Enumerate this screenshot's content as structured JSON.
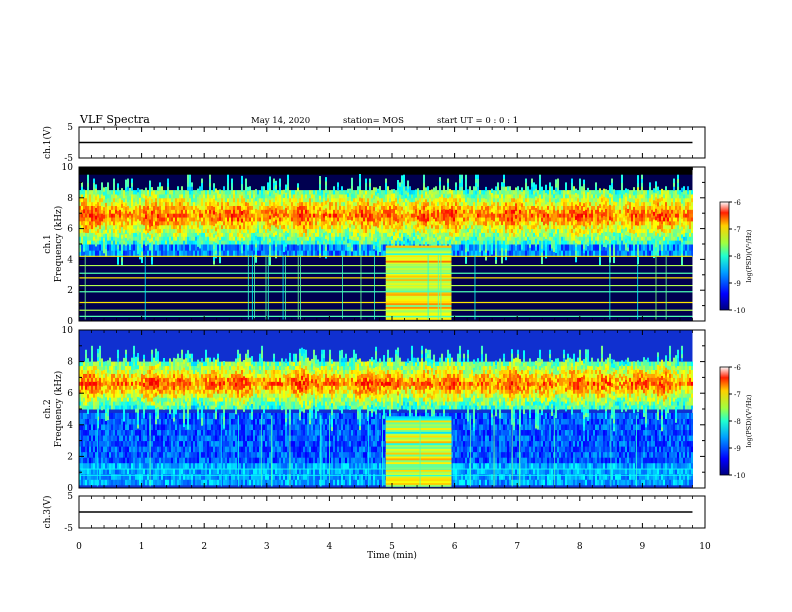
{
  "header": {
    "title": "VLF Spectra",
    "date": "May 14, 2020",
    "station": "station= MOS",
    "start_ut": "start  UT  =   0 : 0  : 1"
  },
  "chart_data": [
    {
      "type": "line",
      "panel": "ch1-voltage",
      "ylabel": "ch.1(V)",
      "y_ticks": [
        "5",
        "-5"
      ],
      "ylim": [
        -5,
        5
      ],
      "series": [
        {
          "values_const": 0
        }
      ]
    },
    {
      "type": "heatmap",
      "panel": "ch1-spectrogram",
      "ylabel_channel": "ch.1",
      "ylabel": "Frequency  (kHz)",
      "y_ticks": [
        "0",
        "2",
        "4",
        "6",
        "8",
        "10"
      ],
      "ylim": [
        0,
        10
      ],
      "xlim": [
        0,
        10
      ],
      "data_extent_min": 9.8,
      "colorbar": {
        "label": "log(PSD)(V²/Hz)",
        "ticks": [
          "-6",
          "-7",
          "-8",
          "-9",
          "-10"
        ],
        "range": [
          -10,
          -6
        ]
      },
      "features": {
        "emission_band_khz": [
          5.0,
          8.5
        ],
        "data_top_khz": 9.5,
        "broadband_interval_min": [
          4.9,
          5.95
        ],
        "carrier_lines_khz": [
          0.3,
          0.7,
          1.2,
          1.9,
          2.3,
          2.8,
          3.1,
          3.6,
          4.2
        ]
      }
    },
    {
      "type": "heatmap",
      "panel": "ch2-spectrogram",
      "ylabel_channel": "ch.2",
      "ylabel": "Frequency  (kHz)",
      "y_ticks": [
        "0",
        "2",
        "4",
        "6",
        "8",
        "10"
      ],
      "ylim": [
        0,
        10
      ],
      "xlim": [
        0,
        10
      ],
      "data_extent_min": 9.8,
      "colorbar": {
        "label": "log(PSD)(V²/Hz)",
        "ticks": [
          "-6",
          "-7",
          "-8",
          "-9",
          "-10"
        ],
        "range": [
          -10,
          -6
        ]
      },
      "features": {
        "emission_band_khz": [
          5.0,
          8.0
        ],
        "broadband_interval_min": [
          4.9,
          5.95
        ],
        "carrier_lines_khz": [
          0.8,
          1.2
        ]
      }
    },
    {
      "type": "line",
      "panel": "ch3-voltage",
      "ylabel": "ch.3(V)",
      "y_ticks": [
        "5",
        "-5"
      ],
      "ylim": [
        -5,
        5
      ],
      "xlabel": "Time  (min)",
      "x_ticks": [
        "0",
        "1",
        "2",
        "3",
        "4",
        "5",
        "6",
        "7",
        "8",
        "9",
        "10"
      ],
      "xlim": [
        0,
        10
      ],
      "series": [
        {
          "values_const": 0
        }
      ]
    }
  ]
}
